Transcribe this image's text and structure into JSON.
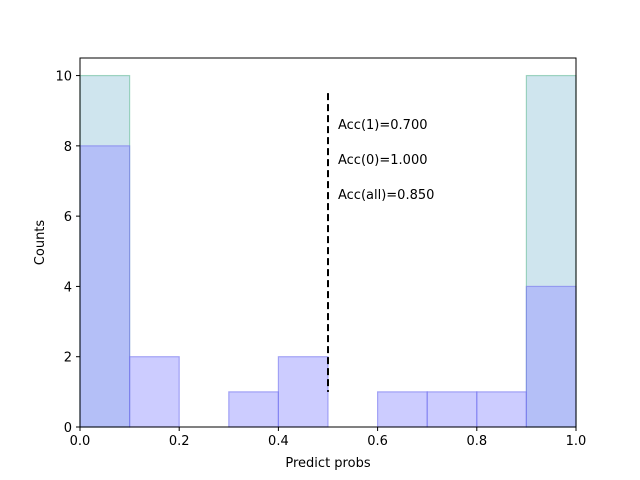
{
  "chart_data": {
    "type": "bar",
    "xlabel": "Predict probs",
    "ylabel": "Counts",
    "xlim": [
      0,
      1
    ],
    "ylim": [
      0,
      10.5
    ],
    "xticks": [
      "0.0",
      "0.2",
      "0.4",
      "0.6",
      "0.8",
      "1.0"
    ],
    "yticks": [
      "0",
      "2",
      "4",
      "6",
      "8",
      "10"
    ],
    "bin_edges": [
      0.0,
      0.1,
      0.2,
      0.3,
      0.4,
      0.5,
      0.6,
      0.7,
      0.8,
      0.9,
      1.0
    ],
    "series": [
      {
        "color": "#a8cfe0",
        "edge": "#66bb99",
        "values": [
          10,
          0,
          0,
          0,
          0,
          0,
          0,
          0,
          0,
          10
        ]
      },
      {
        "color": "#9999ff",
        "edge": "#7777ee",
        "values": [
          8,
          2,
          0,
          1,
          2,
          0,
          1,
          1,
          1,
          4
        ]
      }
    ],
    "threshold": {
      "x": 0.5,
      "y_range": [
        1.0,
        9.5
      ],
      "style": "dashed",
      "color": "#000000"
    },
    "annotations": [
      "Acc(1)=0.700",
      "Acc(0)=1.000",
      "Acc(all)=0.850"
    ],
    "grid": false,
    "legend": "none"
  }
}
